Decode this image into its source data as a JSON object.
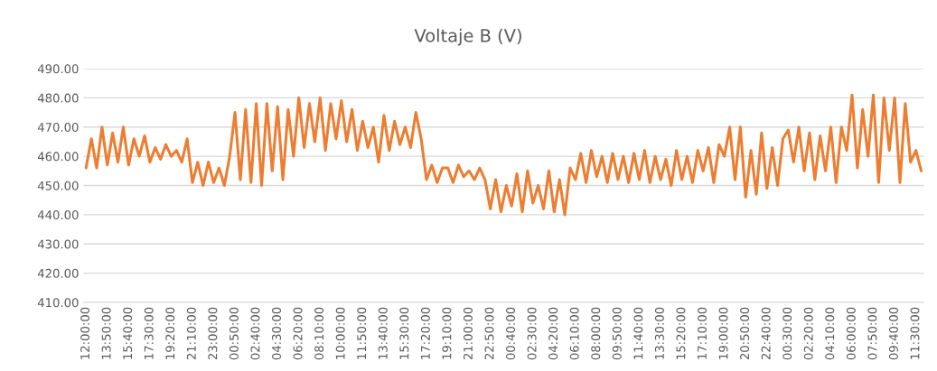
{
  "chart_data": {
    "type": "line",
    "title": "Voltaje B (V)",
    "categories": [
      "12:00:00",
      null,
      null,
      null,
      "13:50:00",
      null,
      null,
      null,
      "15:40:00",
      null,
      null,
      null,
      "17:30:00",
      null,
      null,
      null,
      "19:20:00",
      null,
      null,
      null,
      "21:10:00",
      null,
      null,
      null,
      "23:00:00",
      null,
      null,
      null,
      "00:50:00",
      null,
      null,
      null,
      "02:40:00",
      null,
      null,
      null,
      "04:30:00",
      null,
      null,
      null,
      "06:20:00",
      null,
      null,
      null,
      "08:10:00",
      null,
      null,
      null,
      "10:00:00",
      null,
      null,
      null,
      "11:50:00",
      null,
      null,
      null,
      "13:40:00",
      null,
      null,
      null,
      "15:30:00",
      null,
      null,
      null,
      "17:20:00",
      null,
      null,
      null,
      "19:10:00",
      null,
      null,
      null,
      "21:00:00",
      null,
      null,
      null,
      "22:50:00",
      null,
      null,
      null,
      "00:40:00",
      null,
      null,
      null,
      "02:30:00",
      null,
      null,
      null,
      "04:20:00",
      null,
      null,
      null,
      "06:10:00",
      null,
      null,
      null,
      "08:00:00",
      null,
      null,
      null,
      "09:50:00",
      null,
      null,
      null,
      "11:40:00",
      null,
      null,
      null,
      "13:30:00",
      null,
      null,
      null,
      "15:20:00",
      null,
      null,
      null,
      "17:10:00",
      null,
      null,
      null,
      "19:00:00",
      null,
      null,
      null,
      "20:50:00",
      null,
      null,
      null,
      "22:40:00",
      null,
      null,
      null,
      "00:30:00",
      null,
      null,
      null,
      "02:20:00",
      null,
      null,
      null,
      "04:10:00",
      null,
      null,
      null,
      "06:00:00",
      null,
      null,
      null,
      "07:50:00",
      null,
      null,
      null,
      "09:40:00",
      null,
      null,
      null,
      "11:30:00",
      null
    ],
    "series": [
      {
        "color": "#ed7d31",
        "values": [
          456,
          466,
          456,
          470,
          457,
          468,
          458,
          470,
          457,
          466,
          460,
          467,
          458,
          463,
          459,
          464,
          460,
          462,
          458,
          466,
          451,
          458,
          450,
          458,
          451,
          456,
          450,
          460,
          475,
          452,
          476,
          451,
          478,
          450,
          478,
          455,
          477,
          452,
          476,
          460,
          480,
          463,
          478,
          465,
          480,
          462,
          478,
          466,
          479,
          465,
          476,
          462,
          472,
          463,
          470,
          458,
          474,
          462,
          472,
          464,
          470,
          463,
          475,
          466,
          452,
          457,
          451,
          456,
          456,
          451,
          457,
          453,
          455,
          452,
          456,
          452,
          442,
          452,
          441,
          450,
          443,
          454,
          441,
          455,
          444,
          450,
          442,
          455,
          441,
          452,
          440,
          456,
          452,
          461,
          451,
          462,
          453,
          460,
          451,
          461,
          452,
          460,
          451,
          461,
          452,
          462,
          451,
          460,
          452,
          459,
          450,
          462,
          452,
          460,
          451,
          462,
          455,
          463,
          451,
          464,
          460,
          470,
          452,
          470,
          446,
          462,
          447,
          468,
          449,
          463,
          450,
          466,
          469,
          458,
          470,
          455,
          468,
          452,
          467,
          455,
          470,
          451,
          470,
          462,
          481,
          456,
          476,
          460,
          481,
          451,
          480,
          462,
          480,
          451,
          478,
          458,
          462,
          455
        ]
      }
    ],
    "ylim": [
      410,
      490
    ],
    "yticks": [
      {
        "value": 410,
        "label": "410.00"
      },
      {
        "value": 420,
        "label": "420.00"
      },
      {
        "value": 430,
        "label": "430.00"
      },
      {
        "value": 440,
        "label": "440.00"
      },
      {
        "value": 450,
        "label": "450.00"
      },
      {
        "value": 460,
        "label": "460.00"
      },
      {
        "value": 470,
        "label": "470.00"
      },
      {
        "value": 480,
        "label": "480.00"
      },
      {
        "value": 490,
        "label": "490.00"
      }
    ],
    "grid": "y",
    "legend": false,
    "marker": "none",
    "line_style": "solid"
  }
}
